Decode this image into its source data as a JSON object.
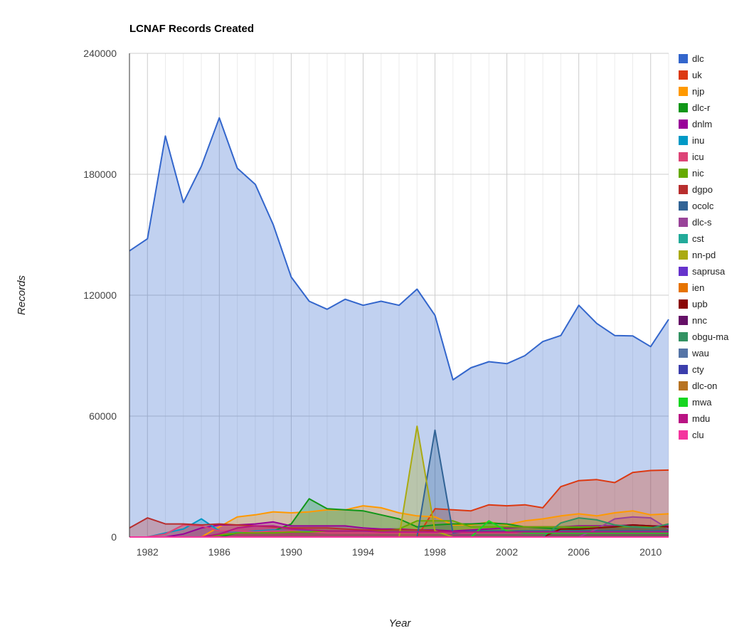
{
  "chart_data": {
    "type": "area",
    "title": "LCNAF Records Created",
    "xlabel": "Year",
    "ylabel": "Records",
    "xlim": [
      1981,
      2011
    ],
    "ylim": [
      0,
      240000
    ],
    "y_ticks": [
      "0",
      "60000",
      "120000",
      "180000",
      "240000"
    ],
    "x_ticks": [
      "1982",
      "1986",
      "1990",
      "1994",
      "1998",
      "2002",
      "2006",
      "2010"
    ],
    "grid": true,
    "legend_position": "right",
    "x": [
      1981,
      1982,
      1983,
      1984,
      1985,
      1986,
      1987,
      1988,
      1989,
      1990,
      1991,
      1992,
      1993,
      1994,
      1995,
      1996,
      1997,
      1998,
      1999,
      2000,
      2001,
      2002,
      2003,
      2004,
      2005,
      2006,
      2007,
      2008,
      2009,
      2010,
      2011
    ],
    "series": [
      {
        "name": "dlc",
        "color": "#3366cc",
        "values": [
          142000,
          148000,
          199000,
          166000,
          184000,
          208000,
          183000,
          175000,
          155000,
          129000,
          117000,
          113000,
          118000,
          115000,
          117000,
          115000,
          123000,
          110000,
          78000,
          84000,
          87000,
          86000,
          90000,
          97000,
          100000,
          115000,
          106000,
          100000,
          99800,
          94500,
          108000
        ]
      },
      {
        "name": "uk",
        "color": "#dc3912",
        "values": [
          0,
          0,
          0,
          0,
          0,
          0,
          0,
          0,
          0,
          0,
          0,
          0,
          0,
          0,
          0,
          0,
          0,
          14000,
          13500,
          13000,
          16000,
          15500,
          16000,
          14500,
          25000,
          28000,
          28500,
          27000,
          32000,
          33000,
          33200
        ]
      },
      {
        "name": "njp",
        "color": "#ff9900",
        "values": [
          0,
          0,
          0,
          0,
          0,
          5000,
          10000,
          11000,
          12500,
          12000,
          12500,
          13500,
          13500,
          15500,
          14500,
          12000,
          10500,
          10000,
          6000,
          6000,
          7500,
          6000,
          8000,
          9000,
          10500,
          11500,
          10500,
          12000,
          13000,
          11000,
          11500
        ]
      },
      {
        "name": "dlc-r",
        "color": "#109618",
        "values": [
          0,
          0,
          0,
          0,
          0,
          0,
          2000,
          2500,
          3000,
          6500,
          19000,
          14000,
          13500,
          13000,
          11000,
          9000,
          5000,
          6000,
          6500,
          6500,
          7000,
          6500,
          5000,
          4500,
          4000,
          4500,
          5000,
          5500,
          6000,
          5500,
          5000
        ]
      },
      {
        "name": "dnlm",
        "color": "#990099",
        "values": [
          0,
          0,
          0,
          1500,
          4500,
          6000,
          6000,
          6500,
          7500,
          5500,
          5500,
          5500,
          5500,
          4500,
          4000,
          4000,
          3500,
          3500,
          3000,
          3500,
          4000,
          4500,
          5000,
          5000,
          5000,
          5500,
          5500,
          5500,
          6000,
          5500,
          5500
        ]
      },
      {
        "name": "inu",
        "color": "#0099c6",
        "values": [
          0,
          0,
          2000,
          4000,
          9000,
          3000,
          2500,
          3000,
          3500,
          3000,
          3000,
          3000,
          3000,
          3000,
          2500,
          2500,
          2500,
          2500,
          2500,
          2500,
          2500,
          2500,
          2500,
          2500,
          2500,
          2500,
          2500,
          2500,
          2500,
          2500,
          2500
        ]
      },
      {
        "name": "icu",
        "color": "#dd4477",
        "values": [
          0,
          0,
          1500,
          6000,
          5500,
          3000,
          3000,
          2500,
          3000,
          3000,
          2500,
          2000,
          2000,
          2000,
          2000,
          2000,
          2000,
          2000,
          2000,
          2000,
          2000,
          2000,
          2000,
          2000,
          2000,
          2000,
          2000,
          2000,
          2000,
          2000,
          2000
        ]
      },
      {
        "name": "nic",
        "color": "#66aa00",
        "values": [
          0,
          0,
          0,
          0,
          0,
          1000,
          2000,
          2000,
          2000,
          2500,
          2500,
          3000,
          3000,
          3000,
          3000,
          4000,
          8000,
          8000,
          8000,
          5000,
          5000,
          5000,
          5000,
          5000,
          5000,
          5000,
          5000,
          5000,
          5000,
          5000,
          5000
        ]
      },
      {
        "name": "dgpo",
        "color": "#b82e2e",
        "values": [
          4500,
          9500,
          6500,
          6500,
          6000,
          6500,
          6000,
          5500,
          5000,
          4500,
          4500,
          4500,
          4000,
          3500,
          3500,
          3500,
          3500,
          3000,
          2500,
          2500,
          2500,
          2500,
          2500,
          2500,
          2500,
          2500,
          2500,
          2500,
          2500,
          2500,
          2500
        ]
      },
      {
        "name": "ocolc",
        "color": "#316395",
        "values": [
          0,
          0,
          0,
          0,
          0,
          0,
          0,
          0,
          0,
          0,
          0,
          0,
          0,
          0,
          0,
          0,
          0,
          53000,
          2000,
          3000,
          3000,
          3000,
          3000,
          3000,
          3000,
          3000,
          3000,
          3000,
          3000,
          3000,
          3000
        ]
      },
      {
        "name": "dlc-s",
        "color": "#994499",
        "values": [
          0,
          0,
          0,
          0,
          0,
          0,
          0,
          0,
          0,
          0,
          0,
          0,
          0,
          0,
          0,
          0,
          0,
          0,
          0,
          0,
          0,
          0,
          0,
          0,
          0,
          0,
          4000,
          9000,
          10000,
          9500,
          4000
        ]
      },
      {
        "name": "cst",
        "color": "#22aa99",
        "values": [
          0,
          0,
          0,
          0,
          0,
          0,
          0,
          0,
          0,
          0,
          0,
          0,
          0,
          0,
          0,
          0,
          0,
          0,
          0,
          0,
          0,
          0,
          0,
          0,
          0,
          0,
          0,
          0,
          0,
          0,
          0
        ]
      },
      {
        "name": "nn-pd",
        "color": "#aaaa11",
        "values": [
          0,
          0,
          0,
          0,
          0,
          0,
          0,
          0,
          0,
          0,
          0,
          0,
          0,
          0,
          0,
          0,
          55000,
          3000,
          0,
          0,
          0,
          0,
          0,
          0,
          0,
          0,
          0,
          0,
          0,
          0,
          0
        ]
      },
      {
        "name": "saprusa",
        "color": "#6633cc",
        "values": [
          0,
          0,
          0,
          0,
          0,
          0,
          0,
          0,
          0,
          0,
          0,
          0,
          0,
          0,
          0,
          0,
          0,
          0,
          0,
          0,
          0,
          0,
          0,
          0,
          0,
          0,
          0,
          0,
          0,
          0,
          0
        ]
      },
      {
        "name": "ien",
        "color": "#e67300",
        "values": [
          0,
          0,
          0,
          0,
          0,
          0,
          0,
          0,
          0,
          0,
          0,
          0,
          0,
          0,
          0,
          0,
          0,
          0,
          0,
          0,
          0,
          0,
          0,
          0,
          0,
          0,
          0,
          0,
          0,
          0,
          0
        ]
      },
      {
        "name": "upb",
        "color": "#8b0707",
        "values": [
          0,
          0,
          0,
          0,
          0,
          0,
          0,
          0,
          0,
          0,
          0,
          0,
          0,
          0,
          0,
          0,
          0,
          0,
          0,
          0,
          0,
          0,
          0,
          0,
          4000,
          4000,
          4500,
          5000,
          6000,
          5500,
          5000
        ]
      },
      {
        "name": "nnc",
        "color": "#651067",
        "values": [
          0,
          0,
          0,
          0,
          0,
          0,
          0,
          0,
          0,
          0,
          0,
          0,
          0,
          0,
          0,
          0,
          0,
          0,
          0,
          0,
          0,
          0,
          0,
          0,
          0,
          0,
          0,
          0,
          0,
          0,
          0
        ]
      },
      {
        "name": "obgu-ma",
        "color": "#329262",
        "values": [
          0,
          0,
          0,
          0,
          0,
          0,
          0,
          0,
          0,
          0,
          0,
          0,
          0,
          0,
          0,
          0,
          0,
          0,
          0,
          0,
          0,
          0,
          0,
          0,
          7000,
          9500,
          8500,
          6000,
          5000,
          4500,
          6500
        ]
      },
      {
        "name": "wau",
        "color": "#5574a6",
        "values": [
          0,
          0,
          0,
          0,
          0,
          0,
          0,
          0,
          0,
          0,
          0,
          0,
          0,
          0,
          0,
          0,
          0,
          0,
          0,
          0,
          0,
          0,
          0,
          0,
          0,
          0,
          0,
          0,
          0,
          0,
          0
        ]
      },
      {
        "name": "cty",
        "color": "#3b3eac",
        "values": [
          0,
          0,
          0,
          0,
          0,
          0,
          0,
          0,
          0,
          0,
          0,
          0,
          0,
          0,
          0,
          0,
          0,
          0,
          0,
          0,
          0,
          0,
          0,
          0,
          0,
          0,
          0,
          0,
          0,
          0,
          0
        ]
      },
      {
        "name": "dlc-on",
        "color": "#b77322",
        "values": [
          0,
          0,
          0,
          0,
          0,
          0,
          0,
          0,
          0,
          0,
          0,
          0,
          0,
          0,
          0,
          0,
          0,
          0,
          0,
          0,
          0,
          0,
          0,
          0,
          0,
          0,
          0,
          0,
          0,
          0,
          0
        ]
      },
      {
        "name": "mwa",
        "color": "#16d620",
        "values": [
          0,
          0,
          0,
          0,
          0,
          0,
          0,
          0,
          0,
          0,
          0,
          0,
          0,
          0,
          0,
          0,
          0,
          0,
          0,
          0,
          8000,
          3000,
          2000,
          2000,
          2000,
          2000,
          2000,
          2000,
          2000,
          2000,
          2000
        ]
      },
      {
        "name": "mdu",
        "color": "#b91383",
        "values": [
          0,
          0,
          0,
          0,
          0,
          1500,
          4500,
          5500,
          5500,
          4000,
          3500,
          3000,
          3000,
          3000,
          2500,
          2500,
          2500,
          2500,
          2500,
          2500,
          2500,
          2500,
          2500,
          2500,
          2500,
          2500,
          2500,
          2500,
          2500,
          2500,
          2500
        ]
      },
      {
        "name": "clu",
        "color": "#f4359e",
        "values": [
          0,
          0,
          0,
          0,
          0,
          0,
          0,
          0,
          0,
          0,
          0,
          0,
          0,
          0,
          0,
          0,
          0,
          0,
          0,
          0,
          0,
          0,
          0,
          0,
          0,
          0,
          0,
          0,
          0,
          0,
          0
        ]
      }
    ]
  }
}
